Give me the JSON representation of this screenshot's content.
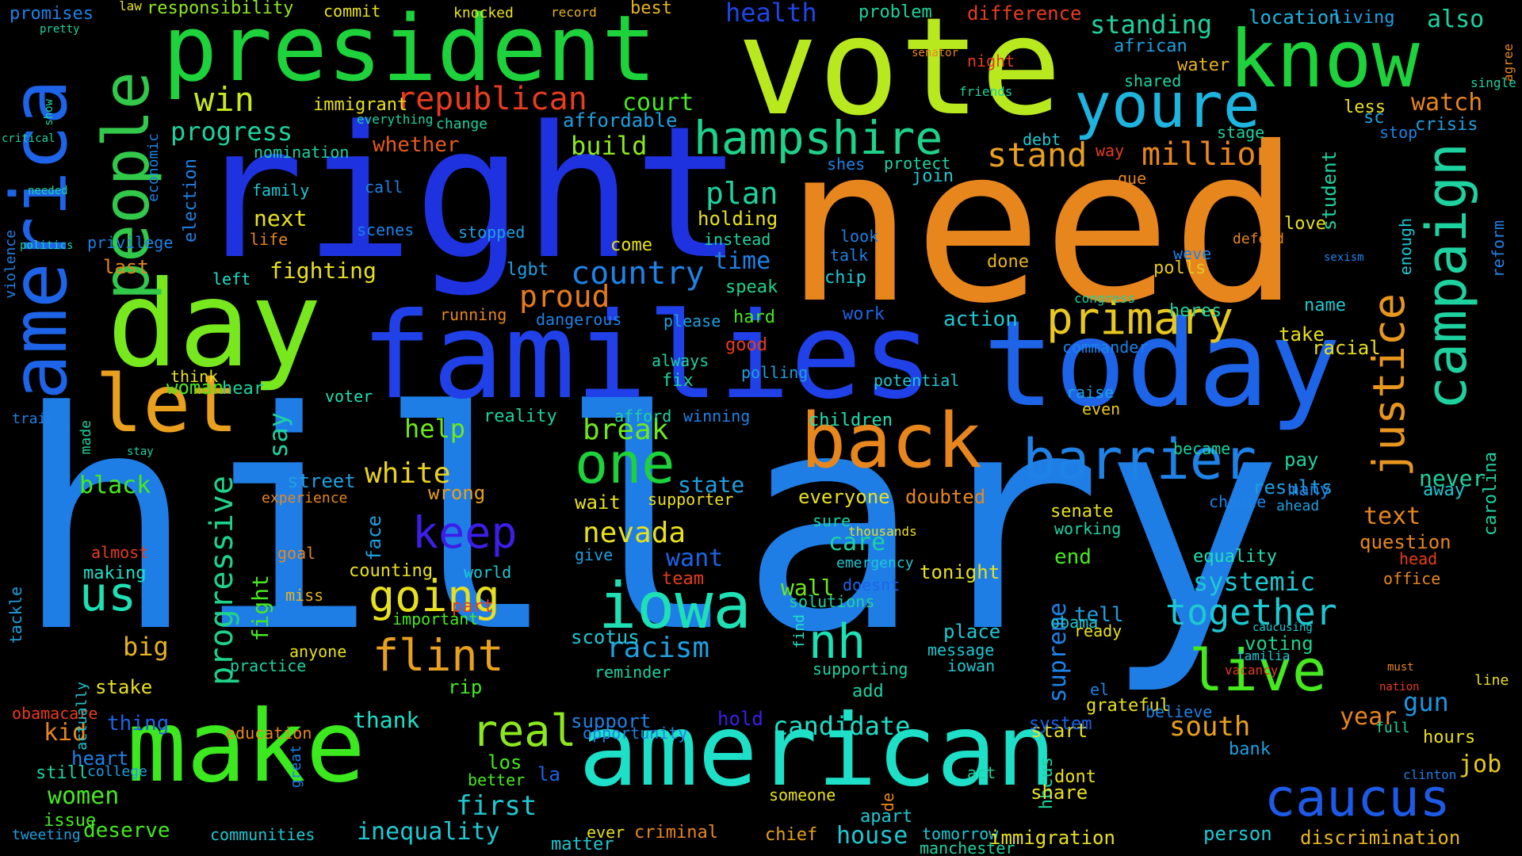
{
  "word_cloud": {
    "background": "#000000",
    "words": [
      {
        "text": "hillary",
        "color": "#1e7ee6"
      },
      {
        "text": "need",
        "color": "#e8861e"
      },
      {
        "text": "right",
        "color": "#1e32e0"
      },
      {
        "text": "vote",
        "color": "#b8e81e"
      },
      {
        "text": "families",
        "color": "#2040e8"
      },
      {
        "text": "today",
        "color": "#1e64e8"
      },
      {
        "text": "american",
        "color": "#1ee0c8"
      },
      {
        "text": "president",
        "color": "#1ed23c"
      },
      {
        "text": "day",
        "color": "#78e81e"
      },
      {
        "text": "make",
        "color": "#3ce81e"
      },
      {
        "text": "know",
        "color": "#1ed23c"
      },
      {
        "text": "america",
        "color": "#1e64e8"
      },
      {
        "text": "back",
        "color": "#e8861e"
      },
      {
        "text": "let",
        "color": "#e8a01e"
      },
      {
        "text": "people",
        "color": "#32c84a"
      },
      {
        "text": "iowa",
        "color": "#1ee0b4"
      },
      {
        "text": "campaign",
        "color": "#1ed2a0"
      },
      {
        "text": "youre",
        "color": "#1eb4e0"
      },
      {
        "text": "hampshire",
        "color": "#1ed28c"
      },
      {
        "text": "barrier",
        "color": "#1e82e6"
      },
      {
        "text": "one",
        "color": "#1ed23c"
      },
      {
        "text": "caucus",
        "color": "#1e5ae8"
      },
      {
        "text": "live",
        "color": "#46e81e"
      },
      {
        "text": "primary",
        "color": "#e8c81e"
      },
      {
        "text": "nh",
        "color": "#1ee0b4"
      },
      {
        "text": "justice",
        "color": "#e8961e"
      },
      {
        "text": "flint",
        "color": "#e8a01e"
      },
      {
        "text": "going",
        "color": "#e8e01e"
      },
      {
        "text": "keep",
        "color": "#3c1ee8"
      },
      {
        "text": "real",
        "color": "#8ce81e"
      },
      {
        "text": "together",
        "color": "#1ec8d2"
      },
      {
        "text": "progressive",
        "color": "#1ed28c"
      },
      {
        "text": "us",
        "color": "#1ee0b4"
      },
      {
        "text": "win",
        "color": "#c8e81e"
      },
      {
        "text": "republican",
        "color": "#e83c1e"
      },
      {
        "text": "country",
        "color": "#1e82e6"
      },
      {
        "text": "proud",
        "color": "#e87a1e"
      },
      {
        "text": "stand",
        "color": "#e8a01e"
      },
      {
        "text": "million",
        "color": "#e8861e"
      },
      {
        "text": "plan",
        "color": "#1ed2a0"
      },
      {
        "text": "break",
        "color": "#6ee81e"
      },
      {
        "text": "white",
        "color": "#e8d21e"
      },
      {
        "text": "nevada",
        "color": "#e8e01e"
      },
      {
        "text": "racism",
        "color": "#1ea0e0"
      },
      {
        "text": "progress",
        "color": "#1ed2a0"
      },
      {
        "text": "candidate",
        "color": "#1ee0c8"
      },
      {
        "text": "first",
        "color": "#1ec8d2"
      },
      {
        "text": "inequality",
        "color": "#1ec8d2"
      },
      {
        "text": "south",
        "color": "#e8a01e"
      },
      {
        "text": "help",
        "color": "#6ee81e"
      },
      {
        "text": "say",
        "color": "#1ed2a0"
      },
      {
        "text": "black",
        "color": "#46e81e"
      },
      {
        "text": "women",
        "color": "#46e81e"
      },
      {
        "text": "fighting",
        "color": "#e8e01e"
      },
      {
        "text": "care",
        "color": "#1ed2a0"
      },
      {
        "text": "systemic",
        "color": "#1ec8d2"
      },
      {
        "text": "supreme",
        "color": "#1e82e6"
      },
      {
        "text": "gun",
        "color": "#1e96e0"
      },
      {
        "text": "job",
        "color": "#e8c81e"
      },
      {
        "text": "year",
        "color": "#e8861e"
      },
      {
        "text": "health",
        "color": "#1e46e8"
      },
      {
        "text": "court",
        "color": "#46e81e"
      },
      {
        "text": "affordable",
        "color": "#1ea0e0"
      },
      {
        "text": "build",
        "color": "#8ce81e"
      },
      {
        "text": "watch",
        "color": "#e8861e"
      },
      {
        "text": "time",
        "color": "#1e82e6"
      },
      {
        "text": "text",
        "color": "#e8861e"
      },
      {
        "text": "fight",
        "color": "#46e81e"
      },
      {
        "text": "want",
        "color": "#1e64e8"
      },
      {
        "text": "big",
        "color": "#e8b41e"
      },
      {
        "text": "kid",
        "color": "#e8861e"
      },
      {
        "text": "house",
        "color": "#1ec8d2"
      },
      {
        "text": "thank",
        "color": "#1ee0c8"
      },
      {
        "text": "street",
        "color": "#1ea0e0"
      },
      {
        "text": "state",
        "color": "#1ea0e0"
      },
      {
        "text": "deserve",
        "color": "#46e81e"
      },
      {
        "text": "standing",
        "color": "#1ed2a0"
      },
      {
        "text": "location",
        "color": "#1eb4e0"
      },
      {
        "text": "also",
        "color": "#1ed2a0"
      },
      {
        "text": "difference",
        "color": "#e83c1e"
      },
      {
        "text": "responsibility",
        "color": "#8ce81e"
      },
      {
        "text": "promises",
        "color": "#1e82e6"
      },
      {
        "text": "commit",
        "color": "#e8e01e"
      },
      {
        "text": "wrong",
        "color": "#e8a01e"
      },
      {
        "text": "whether",
        "color": "#e85a1e"
      },
      {
        "text": "immigrant",
        "color": "#e8e01e"
      },
      {
        "text": "nomination",
        "color": "#1ed2a0"
      },
      {
        "text": "family",
        "color": "#1ec8d2"
      },
      {
        "text": "next",
        "color": "#e8e01e"
      },
      {
        "text": "last",
        "color": "#e8861e"
      },
      {
        "text": "woman",
        "color": "#46e81e"
      },
      {
        "text": "economic",
        "color": "#1e82e6"
      },
      {
        "text": "election",
        "color": "#1e82e6"
      },
      {
        "text": "privilege",
        "color": "#1e82e6"
      },
      {
        "text": "holding",
        "color": "#e8e01e"
      },
      {
        "text": "instead",
        "color": "#1ed2a0"
      },
      {
        "text": "speak",
        "color": "#1ed28c"
      },
      {
        "text": "protect",
        "color": "#1ed2a0"
      },
      {
        "text": "join",
        "color": "#1ec8d2"
      },
      {
        "text": "shes",
        "color": "#1e82e6"
      },
      {
        "text": "chip",
        "color": "#1ec8d2"
      },
      {
        "text": "talk",
        "color": "#1e82e6"
      },
      {
        "text": "work",
        "color": "#1e64e8"
      },
      {
        "text": "action",
        "color": "#1ec8d2"
      },
      {
        "text": "done",
        "color": "#e8b41e"
      },
      {
        "text": "weve",
        "color": "#1e82e6"
      },
      {
        "text": "polls",
        "color": "#e8c81e"
      },
      {
        "text": "heres",
        "color": "#1ed2a0"
      },
      {
        "text": "take",
        "color": "#e8e01e"
      },
      {
        "text": "name",
        "color": "#1ec8d2"
      },
      {
        "text": "commander",
        "color": "#1e82e6"
      },
      {
        "text": "racial",
        "color": "#e8e01e"
      },
      {
        "text": "raise",
        "color": "#1ea0e0"
      },
      {
        "text": "even",
        "color": "#e8c81e"
      },
      {
        "text": "became",
        "color": "#1ed2a0"
      },
      {
        "text": "pay",
        "color": "#1ed2a0"
      },
      {
        "text": "results",
        "color": "#1ea0e0"
      },
      {
        "text": "never",
        "color": "#1ed2a0"
      },
      {
        "text": "away",
        "color": "#1ec8d2"
      },
      {
        "text": "many",
        "color": "#1e82e6"
      },
      {
        "text": "chance",
        "color": "#1e82e6"
      },
      {
        "text": "senate",
        "color": "#e8e01e"
      },
      {
        "text": "working",
        "color": "#1ed2a0"
      },
      {
        "text": "question",
        "color": "#e8861e"
      },
      {
        "text": "equality",
        "color": "#1ee0b4"
      },
      {
        "text": "head",
        "color": "#e83c1e"
      },
      {
        "text": "office",
        "color": "#e8861e"
      },
      {
        "text": "children",
        "color": "#1ee0b4"
      },
      {
        "text": "everyone",
        "color": "#e8e01e"
      },
      {
        "text": "sure",
        "color": "#1ed2a0"
      },
      {
        "text": "doubted",
        "color": "#e8861e"
      },
      {
        "text": "end",
        "color": "#46e81e"
      },
      {
        "text": "tonight",
        "color": "#e8e01e"
      },
      {
        "text": "wall",
        "color": "#6ee81e"
      },
      {
        "text": "solutions",
        "color": "#1ed2a0"
      },
      {
        "text": "doesnt",
        "color": "#1e64e8"
      },
      {
        "text": "team",
        "color": "#e83c1e"
      },
      {
        "text": "place",
        "color": "#1ec8d2"
      },
      {
        "text": "message",
        "color": "#1ec8d2"
      },
      {
        "text": "iowan",
        "color": "#1ec8d2"
      },
      {
        "text": "tell",
        "color": "#1ea0e0"
      },
      {
        "text": "ready",
        "color": "#e8e01e"
      },
      {
        "text": "obama",
        "color": "#1ec8d2"
      },
      {
        "text": "voting",
        "color": "#1ed28c"
      },
      {
        "text": "find",
        "color": "#1ee0c8"
      },
      {
        "text": "supporting",
        "color": "#1ed2a0"
      },
      {
        "text": "add",
        "color": "#1ed2a0"
      },
      {
        "text": "grateful",
        "color": "#e8e01e"
      },
      {
        "text": "believe",
        "color": "#1e82e6"
      },
      {
        "text": "start",
        "color": "#e8e01e"
      },
      {
        "text": "system",
        "color": "#1e64e8"
      },
      {
        "text": "hours",
        "color": "#e8e01e"
      },
      {
        "text": "bank",
        "color": "#1ea0e0"
      },
      {
        "text": "hbcus",
        "color": "#1ed2a0"
      },
      {
        "text": "dont",
        "color": "#e8e01e"
      },
      {
        "text": "share",
        "color": "#e8e01e"
      },
      {
        "text": "apart",
        "color": "#1ec8d2"
      },
      {
        "text": "tomorrow",
        "color": "#1ec8d2"
      },
      {
        "text": "immigration",
        "color": "#e8e01e"
      },
      {
        "text": "person",
        "color": "#1ec8d2"
      },
      {
        "text": "discrimination",
        "color": "#e8b41e"
      },
      {
        "text": "manchester",
        "color": "#1ed2a0"
      },
      {
        "text": "chief",
        "color": "#e8a01e"
      },
      {
        "text": "criminal",
        "color": "#e8861e"
      },
      {
        "text": "communities",
        "color": "#1ec8d2"
      },
      {
        "text": "ever",
        "color": "#e8e01e"
      },
      {
        "text": "matter",
        "color": "#1ec8d2"
      },
      {
        "text": "los",
        "color": "#46e81e"
      },
      {
        "text": "la",
        "color": "#1e64e8"
      },
      {
        "text": "better",
        "color": "#46e81e"
      },
      {
        "text": "support",
        "color": "#1e82e6"
      },
      {
        "text": "opportunity",
        "color": "#1e82e6"
      },
      {
        "text": "hold",
        "color": "#3c1ee8"
      },
      {
        "text": "reminder",
        "color": "#1ed2a0"
      },
      {
        "text": "scotus",
        "color": "#1ec8d2"
      },
      {
        "text": "rip",
        "color": "#46e81e"
      },
      {
        "text": "part",
        "color": "#e83c1e"
      },
      {
        "text": "world",
        "color": "#1ec8d2"
      },
      {
        "text": "counting",
        "color": "#e8e01e"
      },
      {
        "text": "important",
        "color": "#46e81e"
      },
      {
        "text": "anyone",
        "color": "#e8e01e"
      },
      {
        "text": "practice",
        "color": "#1ed2a0"
      },
      {
        "text": "face",
        "color": "#1ea0e0"
      },
      {
        "text": "experience",
        "color": "#e8861e"
      },
      {
        "text": "reality",
        "color": "#1ed2a0"
      },
      {
        "text": "afford",
        "color": "#1ed2a0"
      },
      {
        "text": "winning",
        "color": "#1e82e6"
      },
      {
        "text": "fix",
        "color": "#1ed2a0"
      },
      {
        "text": "always",
        "color": "#1ed2a0"
      },
      {
        "text": "hard",
        "color": "#46e81e"
      },
      {
        "text": "good",
        "color": "#e83c1e"
      },
      {
        "text": "polling",
        "color": "#1ea0e0"
      },
      {
        "text": "potential",
        "color": "#1ec8d2"
      },
      {
        "text": "voter",
        "color": "#1ee0b4"
      },
      {
        "text": "hear",
        "color": "#1ed2a0"
      },
      {
        "text": "stake",
        "color": "#e8e01e"
      },
      {
        "text": "thing",
        "color": "#1e64e8"
      },
      {
        "text": "heart",
        "color": "#1e82e6"
      },
      {
        "text": "still",
        "color": "#1ed2a0"
      },
      {
        "text": "issue",
        "color": "#46e81e"
      },
      {
        "text": "running",
        "color": "#e8861e"
      },
      {
        "text": "dangerous",
        "color": "#1e82e6"
      },
      {
        "text": "lgbt",
        "color": "#1ea0e0"
      },
      {
        "text": "left",
        "color": "#1ee0c8"
      },
      {
        "text": "call",
        "color": "#1e82e6"
      },
      {
        "text": "life",
        "color": "#e8861e"
      },
      {
        "text": "wait",
        "color": "#e8e01e"
      },
      {
        "text": "give",
        "color": "#1ea0e0"
      },
      {
        "text": "supporter",
        "color": "#e8e01e"
      },
      {
        "text": "making",
        "color": "#1ee0c8"
      },
      {
        "text": "almost",
        "color": "#e83c1e"
      },
      {
        "text": "goal",
        "color": "#e8861e"
      },
      {
        "text": "miss",
        "color": "#e8b41e"
      },
      {
        "text": "stopped",
        "color": "#1ea0e0"
      },
      {
        "text": "come",
        "color": "#e8e01e"
      },
      {
        "text": "please",
        "color": "#1ea0e0"
      },
      {
        "text": "love",
        "color": "#e8e01e"
      },
      {
        "text": "defend",
        "color": "#e8861e"
      },
      {
        "text": "look",
        "color": "#1e82e6"
      },
      {
        "text": "student",
        "color": "#1ed2a0"
      },
      {
        "text": "reform",
        "color": "#1e82e6"
      },
      {
        "text": "enough",
        "color": "#1ec8d2"
      },
      {
        "text": "crisis",
        "color": "#1ea0e0"
      },
      {
        "text": "stop",
        "color": "#1e82e6"
      },
      {
        "text": "less",
        "color": "#e8e01e"
      },
      {
        "text": "african",
        "color": "#1ea0e0"
      },
      {
        "text": "water",
        "color": "#e8b41e"
      },
      {
        "text": "shared",
        "color": "#1ed2a0"
      },
      {
        "text": "way",
        "color": "#e83c1e"
      },
      {
        "text": "sc",
        "color": "#1ea0e0"
      },
      {
        "text": "que",
        "color": "#e8861e"
      },
      {
        "text": "debt",
        "color": "#1ec8d2"
      },
      {
        "text": "living",
        "color": "#1ea0e0"
      },
      {
        "text": "problem",
        "color": "#1ed2a0"
      },
      {
        "text": "best",
        "color": "#e8b41e"
      },
      {
        "text": "change",
        "color": "#1ed2a0"
      },
      {
        "text": "everything",
        "color": "#1ed2a0"
      },
      {
        "text": "scenes",
        "color": "#1e82e6"
      },
      {
        "text": "ahead",
        "color": "#1ea0e0"
      },
      {
        "text": "congress",
        "color": "#1ed2a0"
      },
      {
        "text": "record",
        "color": "#e8b41e"
      },
      {
        "text": "knocked",
        "color": "#e8e01e"
      },
      {
        "text": "law",
        "color": "#e8e01e"
      },
      {
        "text": "critical",
        "color": "#1ed2a0"
      },
      {
        "text": "show",
        "color": "#1ed2a0"
      },
      {
        "text": "pretty",
        "color": "#1ed2a0"
      },
      {
        "text": "needed",
        "color": "#1ed2a0"
      },
      {
        "text": "politics",
        "color": "#1ed2a0"
      },
      {
        "text": "violence",
        "color": "#1e82e6"
      },
      {
        "text": "trail",
        "color": "#1e82e6"
      },
      {
        "text": "stay",
        "color": "#1ed2a0"
      },
      {
        "text": "made",
        "color": "#1ed2a0"
      },
      {
        "text": "think",
        "color": "#e8e01e"
      },
      {
        "text": "college",
        "color": "#1ea0e0"
      },
      {
        "text": "tweeting",
        "color": "#1ea0e0"
      },
      {
        "text": "obamacare",
        "color": "#e83c1e"
      },
      {
        "text": "tackle",
        "color": "#1ea0e0"
      },
      {
        "text": "education",
        "color": "#e8861e"
      },
      {
        "text": "actually",
        "color": "#1ec8d2"
      },
      {
        "text": "great",
        "color": "#1e82e6"
      },
      {
        "text": "el",
        "color": "#1e82e6"
      },
      {
        "text": "de",
        "color": "#e8861e"
      },
      {
        "text": "someone",
        "color": "#e8e01e"
      },
      {
        "text": "act",
        "color": "#1ed2a0"
      },
      {
        "text": "emergency",
        "color": "#1ec8d2"
      },
      {
        "text": "thousands",
        "color": "#e8e01e"
      },
      {
        "text": "senator",
        "color": "#e8861e"
      },
      {
        "text": "night",
        "color": "#e83c1e"
      },
      {
        "text": "friends",
        "color": "#1ed2a0"
      },
      {
        "text": "vacancy",
        "color": "#e83c1e"
      },
      {
        "text": "familia",
        "color": "#1ec8d2"
      },
      {
        "text": "caucusing",
        "color": "#1ec8d2"
      },
      {
        "text": "line",
        "color": "#e8e01e"
      },
      {
        "text": "full",
        "color": "#1ed2a0"
      },
      {
        "text": "nation",
        "color": "#e83c1e"
      },
      {
        "text": "must",
        "color": "#e8861e"
      },
      {
        "text": "carolina",
        "color": "#1ed2a0"
      },
      {
        "text": "sexism",
        "color": "#1e82e6"
      },
      {
        "text": "single",
        "color": "#1ed2a0"
      },
      {
        "text": "agree",
        "color": "#e8861e"
      },
      {
        "text": "stage",
        "color": "#1ed2a0"
      },
      {
        "text": "clinton",
        "color": "#1e82e6"
      }
    ]
  }
}
